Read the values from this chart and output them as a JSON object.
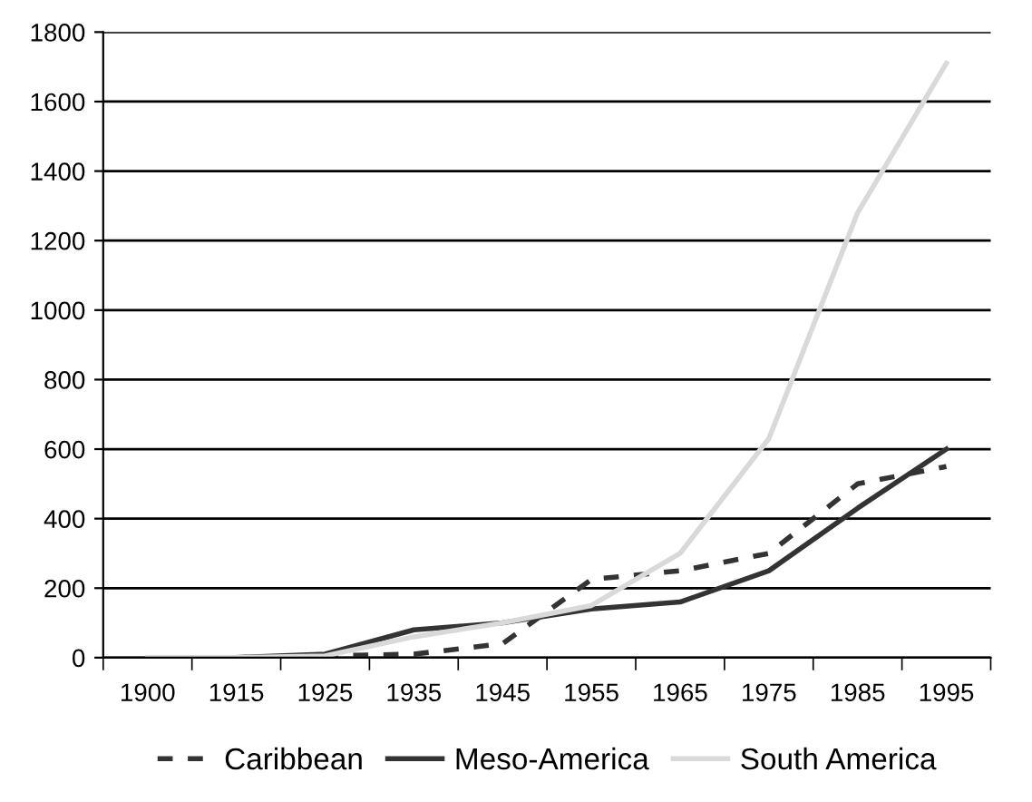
{
  "chart_data": {
    "type": "line",
    "categories": [
      "1900",
      "1915",
      "1925",
      "1935",
      "1945",
      "1955",
      "1965",
      "1975",
      "1985",
      "1995"
    ],
    "series": [
      {
        "name": "Caribbean",
        "color": "#333333",
        "line_style": "dashed",
        "values": [
          0,
          0,
          5,
          10,
          40,
          225,
          250,
          300,
          500,
          550
        ]
      },
      {
        "name": "Meso-America",
        "color": "#333333",
        "line_style": "solid",
        "values": [
          0,
          0,
          10,
          80,
          100,
          140,
          160,
          250,
          430,
          600
        ]
      },
      {
        "name": "South America",
        "color": "#d9d9d9",
        "line_style": "solid",
        "values": [
          0,
          0,
          5,
          60,
          100,
          150,
          300,
          630,
          1280,
          1710
        ]
      }
    ],
    "ylim": [
      0,
      1800
    ],
    "yticks": [
      0,
      200,
      400,
      600,
      800,
      1000,
      1200,
      1400,
      1600,
      1800
    ],
    "grid": "y",
    "legend": "bottom",
    "marker": "none"
  }
}
